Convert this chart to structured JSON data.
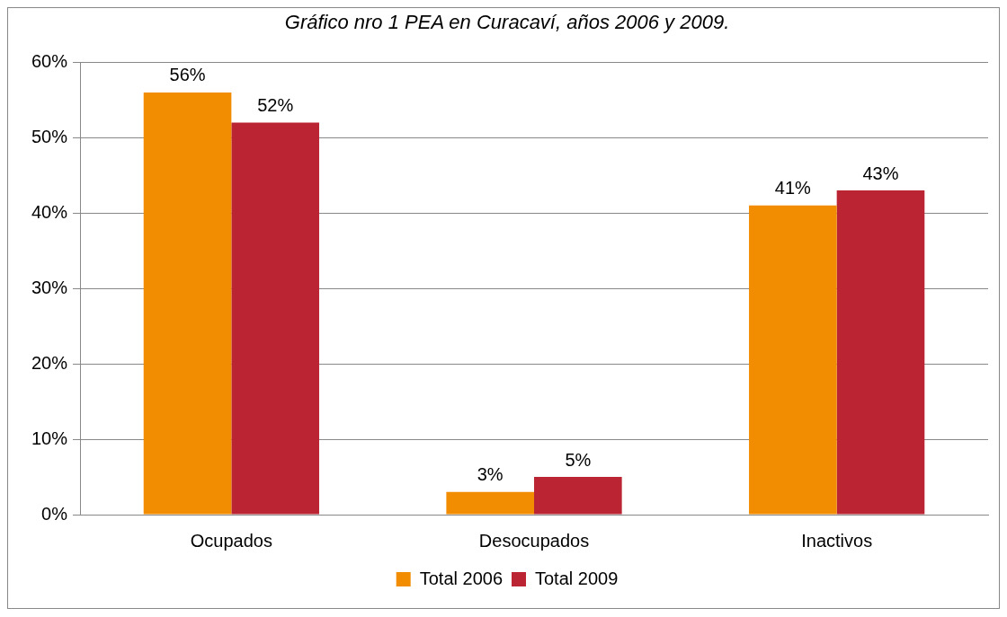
{
  "chart_data": {
    "type": "bar",
    "title": "Gráfico nro 1 PEA en Curacaví, años 2006 y 2009.",
    "categories": [
      "Ocupados",
      "Desocupados",
      "Inactivos"
    ],
    "series": [
      {
        "name": "Total 2006",
        "color": "#f28c00",
        "values": [
          56,
          3,
          41
        ],
        "value_labels": [
          "56%",
          "3%",
          "41%"
        ]
      },
      {
        "name": "Total 2009",
        "color": "#bb2533",
        "values": [
          52,
          5,
          43
        ],
        "value_labels": [
          "52%",
          "5%",
          "43%"
        ]
      }
    ],
    "ylim": [
      0,
      60
    ],
    "yticks": [
      {
        "value": 0,
        "label": "0%"
      },
      {
        "value": 10,
        "label": "10%"
      },
      {
        "value": 20,
        "label": "20%"
      },
      {
        "value": 30,
        "label": "30%"
      },
      {
        "value": 40,
        "label": "40%"
      },
      {
        "value": 50,
        "label": "50%"
      },
      {
        "value": 60,
        "label": "60%"
      }
    ],
    "grid": "y",
    "legend": "bottom"
  }
}
